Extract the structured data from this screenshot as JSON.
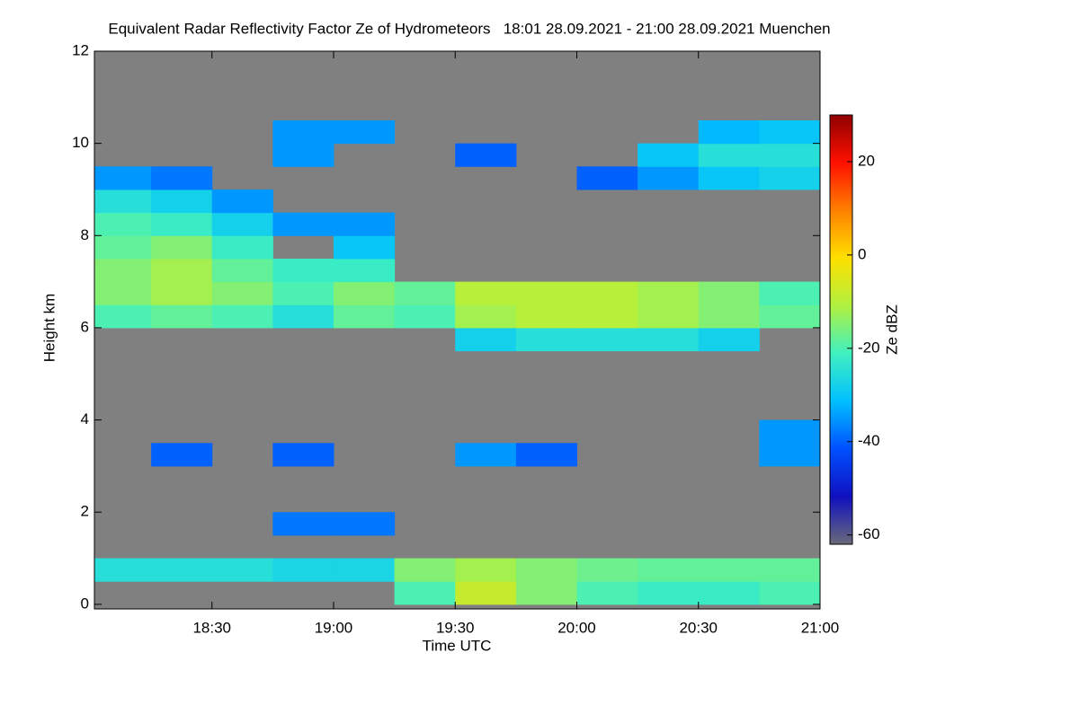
{
  "chart_data": {
    "type": "heatmap",
    "title": "Equivalent Radar Reflectivity Factor Ze of Hydrometeors   18:01 28.09.2021 - 21:00 28.09.2021 Muenchen",
    "xlabel": "Time UTC",
    "ylabel": "Height km",
    "colorbar_label": "Ze dBZ",
    "xlim": [
      1081,
      1260
    ],
    "xticks": [
      {
        "value": 1110,
        "label": "18:30"
      },
      {
        "value": 1140,
        "label": "19:00"
      },
      {
        "value": 1170,
        "label": "19:30"
      },
      {
        "value": 1200,
        "label": "20:00"
      },
      {
        "value": 1230,
        "label": "20:30"
      },
      {
        "value": 1260,
        "label": "21:00"
      }
    ],
    "ylim": [
      -0.1,
      12
    ],
    "yticks": [
      0,
      2,
      4,
      6,
      8,
      10,
      12
    ],
    "zlim": [
      -62,
      30
    ],
    "zticks": [
      -60,
      -40,
      -20,
      0,
      20
    ],
    "background": "#808080",
    "colormap": [
      "#6a6a7a",
      "#1010c0",
      "#0050ff",
      "#00c0ff",
      "#40f0c0",
      "#b0f040",
      "#ffe000",
      "#ff8000",
      "#ff1000",
      "#900000"
    ],
    "x_bins": [
      1081,
      1095,
      1110,
      1125,
      1140,
      1155,
      1170,
      1185,
      1200,
      1215,
      1230,
      1245,
      1260
    ],
    "y_bins": [
      0,
      0.5,
      1,
      1.5,
      2,
      2.5,
      3,
      3.5,
      4,
      4.5,
      5,
      5.5,
      6,
      6.5,
      7,
      7.5,
      8,
      8.5,
      9,
      9.5,
      10,
      10.5,
      11,
      11.5,
      12
    ],
    "z": [
      [
        null,
        null,
        null,
        null,
        null,
        -20,
        -8,
        -15,
        -20,
        -22,
        -22,
        -20
      ],
      [
        -25,
        -25,
        -25,
        -27,
        -27,
        -15,
        -12,
        -15,
        -17,
        -18,
        -18,
        -18
      ],
      [
        null,
        null,
        null,
        null,
        null,
        null,
        null,
        null,
        null,
        null,
        null,
        null
      ],
      [
        null,
        null,
        null,
        -38,
        -38,
        null,
        null,
        null,
        null,
        null,
        null,
        null
      ],
      [
        null,
        null,
        null,
        null,
        null,
        null,
        null,
        null,
        null,
        null,
        null,
        null
      ],
      [
        null,
        null,
        null,
        null,
        null,
        null,
        null,
        null,
        null,
        null,
        null,
        null
      ],
      [
        null,
        -40,
        null,
        -40,
        null,
        null,
        -35,
        -40,
        null,
        null,
        null,
        -35
      ],
      [
        null,
        null,
        null,
        null,
        null,
        null,
        null,
        null,
        null,
        null,
        null,
        -35
      ],
      [
        null,
        null,
        null,
        null,
        null,
        null,
        null,
        null,
        null,
        null,
        null,
        null
      ],
      [
        null,
        null,
        null,
        null,
        null,
        null,
        null,
        null,
        null,
        null,
        null,
        null
      ],
      [
        null,
        null,
        null,
        null,
        null,
        null,
        null,
        null,
        null,
        null,
        null,
        null
      ],
      [
        null,
        null,
        null,
        null,
        null,
        null,
        -28,
        -25,
        -25,
        -25,
        -28,
        null
      ],
      [
        -20,
        -18,
        -20,
        -25,
        -18,
        -20,
        -12,
        -10,
        -10,
        -12,
        -15,
        -18
      ],
      [
        -15,
        -12,
        -15,
        -20,
        -15,
        -18,
        -10,
        -10,
        -10,
        -12,
        -15,
        -20
      ],
      [
        -15,
        -12,
        -18,
        -22,
        -22,
        null,
        null,
        null,
        null,
        null,
        null,
        null
      ],
      [
        -18,
        -15,
        -22,
        null,
        -30,
        null,
        null,
        null,
        null,
        null,
        null,
        null
      ],
      [
        -20,
        -22,
        -28,
        -35,
        -35,
        null,
        null,
        null,
        null,
        null,
        null,
        null
      ],
      [
        -25,
        -28,
        -35,
        null,
        null,
        null,
        null,
        null,
        null,
        null,
        null,
        null
      ],
      [
        -35,
        -38,
        null,
        null,
        null,
        null,
        null,
        null,
        -40,
        -35,
        -30,
        -28
      ],
      [
        null,
        null,
        null,
        -35,
        null,
        null,
        -40,
        null,
        null,
        -30,
        -25,
        -25
      ],
      [
        null,
        null,
        null,
        -35,
        -35,
        null,
        null,
        null,
        null,
        null,
        -32,
        -30
      ],
      [
        null,
        null,
        null,
        null,
        null,
        null,
        null,
        null,
        null,
        null,
        null,
        null
      ],
      [
        null,
        null,
        null,
        null,
        null,
        null,
        null,
        null,
        null,
        null,
        null,
        null
      ],
      [
        null,
        null,
        null,
        null,
        null,
        null,
        null,
        null,
        null,
        null,
        null,
        null
      ]
    ]
  }
}
